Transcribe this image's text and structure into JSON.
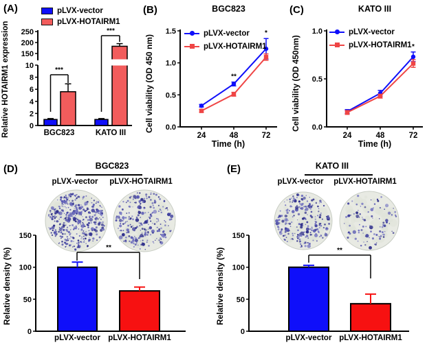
{
  "figure": {
    "background": "#ffffff",
    "colors": {
      "blue": "#0f0ffa",
      "red_a": "#f25c5c",
      "red_line": "#ef4545",
      "red_bar": "#f71111",
      "colony_dot": "#41419f",
      "dish_fill": "#e8eae3"
    }
  },
  "panels": {
    "A": {
      "letter": "(A)"
    },
    "B": {
      "letter": "(B)"
    },
    "C": {
      "letter": "(C)"
    },
    "D": {
      "letter": "(D)"
    },
    "E": {
      "letter": "(E)"
    }
  },
  "chart_data": [
    {
      "id": "A",
      "type": "bar",
      "title": "",
      "ylabel": "Relative HOTAIRM1 expression",
      "categories": [
        "BGC823",
        "KATO III"
      ],
      "series": [
        {
          "name": "pLVX-vector",
          "color": "#0f0ffa",
          "values": [
            1.0,
            1.0
          ],
          "errors": [
            0.15,
            0.15
          ]
        },
        {
          "name": "pLVX-HOTAIRM1",
          "color": "#f25c5c",
          "values": [
            5.6,
            183
          ],
          "errors": [
            1.3,
            12
          ]
        }
      ],
      "broken_axis": {
        "lower_range": [
          0,
          10
        ],
        "lower_ticks": [
          0,
          2,
          4,
          6,
          8,
          10
        ],
        "upper_range": [
          150,
          250
        ],
        "upper_ticks": [
          150,
          200,
          250
        ]
      },
      "significance": [
        {
          "category": "BGC823",
          "label": "***"
        },
        {
          "category": "KATO III",
          "label": "***"
        }
      ]
    },
    {
      "id": "B",
      "type": "line",
      "title": "BGC823",
      "xlabel": "Time (h)",
      "ylabel": "Cell viability (OD 450 nm)",
      "x": [
        24,
        48,
        72
      ],
      "ylim": [
        0,
        1.5
      ],
      "yticks": [
        0,
        0.5,
        1,
        1.5
      ],
      "ytick_labels": [
        "0.0",
        "0.5",
        "1.0",
        "1.5"
      ],
      "series": [
        {
          "name": "pLVX-vector",
          "color": "#0f0ffa",
          "marker": "circle",
          "values": [
            0.33,
            0.67,
            1.22
          ],
          "errors": [
            0.02,
            0.03,
            0.16
          ]
        },
        {
          "name": "pLVX-HOTAIRM1",
          "color": "#ef4545",
          "marker": "square",
          "values": [
            0.25,
            0.51,
            1.09
          ],
          "errors": [
            0.02,
            0.03,
            0.05
          ]
        }
      ],
      "significance": [
        {
          "x": 48,
          "label": "**"
        },
        {
          "x": 72,
          "label": "*"
        }
      ]
    },
    {
      "id": "C",
      "type": "line",
      "title": "KATO III",
      "xlabel": "Time (h)",
      "ylabel": "Cell viability (OD 450nm)",
      "x": [
        24,
        48,
        72
      ],
      "ylim": [
        0,
        1.0
      ],
      "yticks": [
        0,
        0.5,
        1
      ],
      "ytick_labels": [
        "0.0",
        "0.5",
        "1.0"
      ],
      "series": [
        {
          "name": "pLVX-vector",
          "color": "#0f0ffa",
          "marker": "circle",
          "values": [
            0.16,
            0.35,
            0.73
          ],
          "errors": [
            0.02,
            0.03,
            0.05
          ]
        },
        {
          "name": "pLVX-HOTAIRM1",
          "color": "#ef4545",
          "marker": "square",
          "values": [
            0.15,
            0.32,
            0.66
          ],
          "errors": [
            0.02,
            0.02,
            0.04
          ]
        }
      ],
      "significance": [
        {
          "x": 72,
          "label": "*"
        }
      ]
    },
    {
      "id": "D",
      "type": "bar",
      "title": "BGC823",
      "ylabel": "Relative density (%)",
      "categories": [
        "pLVX-vector",
        "pLVX-HOTAIRM1"
      ],
      "values": [
        100,
        63
      ],
      "errors": [
        8,
        6
      ],
      "colors": [
        "#0f0ffa",
        "#f71111"
      ],
      "ylim": [
        0,
        150
      ],
      "yticks": [
        0,
        50,
        100,
        150
      ],
      "significance": [
        {
          "label": "**"
        }
      ],
      "dishes": {
        "labels": [
          "pLVX-vector",
          "pLVX-HOTAIRM1"
        ],
        "colony_counts": [
          400,
          250
        ]
      }
    },
    {
      "id": "E",
      "type": "bar",
      "title": "KATO III",
      "ylabel": "Relative density (%)",
      "categories": [
        "pLVX-vector",
        "pLVX-HOTAIRM1"
      ],
      "values": [
        100,
        43
      ],
      "errors": [
        3,
        15
      ],
      "colors": [
        "#0f0ffa",
        "#f71111"
      ],
      "ylim": [
        0,
        150
      ],
      "yticks": [
        0,
        50,
        100,
        150
      ],
      "significance": [
        {
          "label": "**"
        }
      ],
      "dishes": {
        "labels": [
          "pLVX-vector",
          "pLVX-HOTAIRM1"
        ],
        "colony_counts": [
          220,
          100
        ]
      }
    }
  ]
}
